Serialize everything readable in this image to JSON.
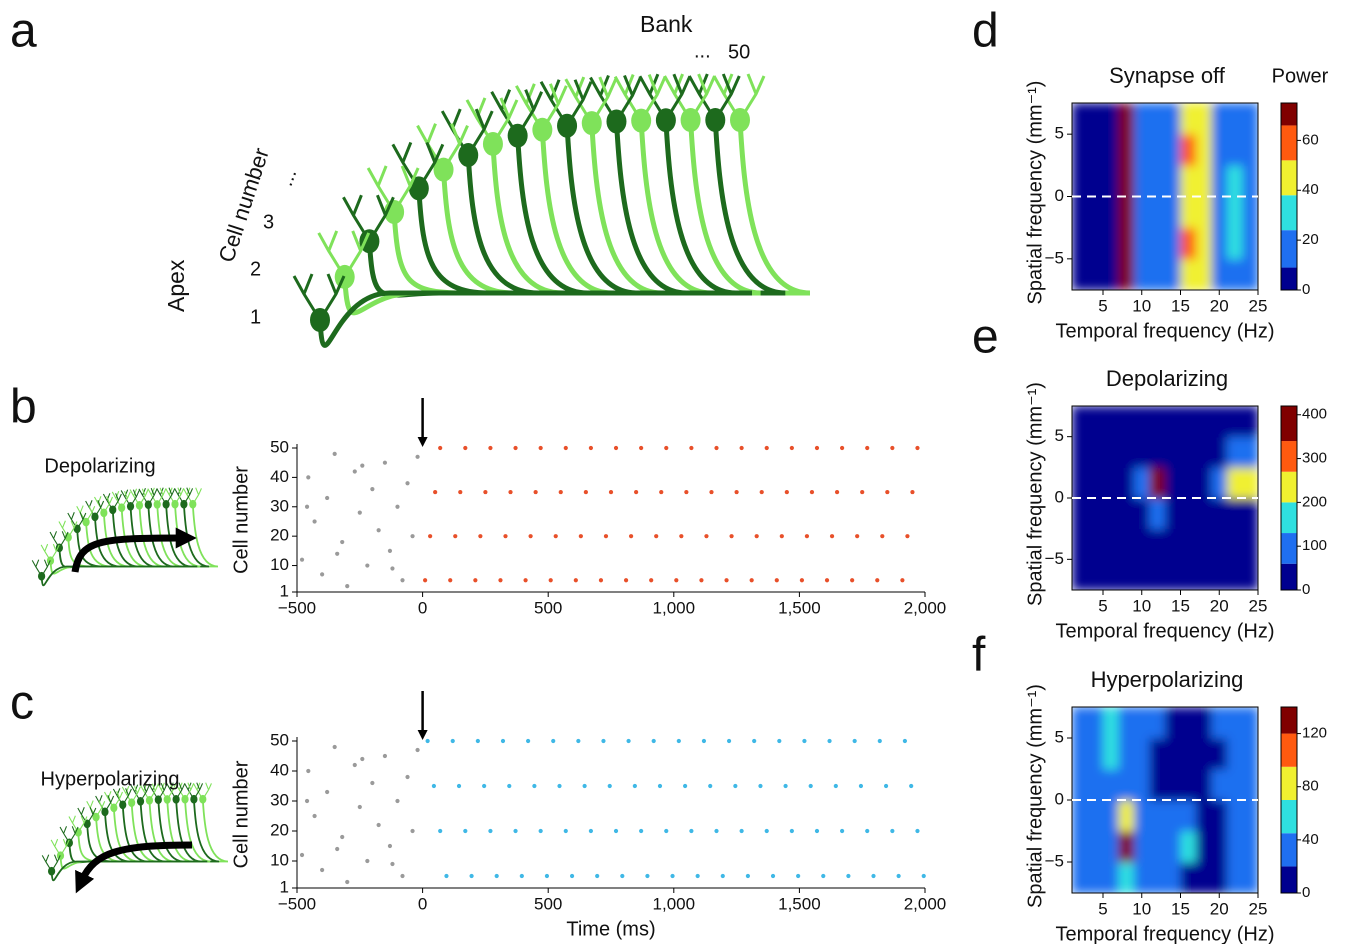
{
  "panel_labels": [
    "a",
    "b",
    "c",
    "d",
    "e",
    "f"
  ],
  "diagram": {
    "bank_label": "Bank",
    "bank_last": "50",
    "ellipsis": "...",
    "axis_label": "Cell number",
    "cell_labels": [
      "1",
      "2",
      "3"
    ],
    "apex_label": "Apex"
  },
  "chart_data": [
    {
      "type": "scatter",
      "annotation": "Depolarizing",
      "ylabel": "Cell number",
      "stimulus_onset": 0,
      "xlim": [
        -500,
        2000
      ],
      "ylim": [
        1,
        50
      ],
      "xticks": [
        {
          "value": -500,
          "label": "−500"
        },
        0,
        500,
        {
          "value": 1000,
          "label": "1,000"
        },
        {
          "value": 1500,
          "label": "1,500"
        },
        {
          "value": 2000,
          "label": "2,000"
        }
      ],
      "yticks": [
        1,
        10,
        20,
        30,
        40,
        50
      ],
      "series": [
        {
          "color": "#9a9a9a",
          "x": [
            -480,
            -455,
            -430,
            -400,
            -380,
            -350,
            -320,
            -300,
            -270,
            -250,
            -220,
            -200,
            -175,
            -150,
            -130,
            -100,
            -80,
            -60,
            -40,
            -20,
            -460,
            -340,
            -240,
            -120
          ],
          "values": [
            12,
            40,
            25,
            7,
            33,
            48,
            18,
            3,
            42,
            28,
            10,
            36,
            22,
            45,
            15,
            30,
            5,
            38,
            20,
            47,
            30,
            14,
            44,
            9
          ]
        },
        {
          "color": "#e8502a",
          "x": [
            10,
            30,
            50,
            70,
            110,
            130,
            150,
            170,
            210,
            230,
            250,
            270,
            310,
            330,
            350,
            370,
            410,
            430,
            450,
            470,
            510,
            530,
            550,
            570,
            610,
            630,
            650,
            670,
            710,
            730,
            750,
            770,
            810,
            830,
            850,
            870,
            910,
            930,
            950,
            970,
            1010,
            1030,
            1050,
            1070,
            1110,
            1130,
            1150,
            1170,
            1210,
            1230,
            1250,
            1270,
            1310,
            1330,
            1350,
            1370,
            1410,
            1430,
            1450,
            1470,
            1510,
            1530,
            1550,
            1570,
            1610,
            1630,
            1650,
            1670,
            1710,
            1730,
            1750,
            1770,
            1810,
            1830,
            1850,
            1870,
            1910,
            1930,
            1950,
            1970
          ],
          "values": [
            5,
            20,
            35,
            50,
            5,
            20,
            35,
            50,
            5,
            20,
            35,
            50,
            5,
            20,
            35,
            50,
            5,
            20,
            35,
            50,
            5,
            20,
            35,
            50,
            5,
            20,
            35,
            50,
            5,
            20,
            35,
            50,
            5,
            20,
            35,
            50,
            5,
            20,
            35,
            50,
            5,
            20,
            35,
            50,
            5,
            20,
            35,
            50,
            5,
            20,
            35,
            50,
            5,
            20,
            35,
            50,
            5,
            20,
            35,
            50,
            5,
            20,
            35,
            50,
            5,
            20,
            35,
            50,
            5,
            20,
            35,
            50,
            5,
            20,
            35,
            50,
            5,
            20,
            35,
            50
          ]
        }
      ]
    },
    {
      "type": "scatter",
      "annotation": "Hyperpolarizing",
      "ylabel": "Cell number",
      "xlabel": "Time (ms)",
      "stimulus_onset": 0,
      "xlim": [
        -500,
        2000
      ],
      "ylim": [
        1,
        50
      ],
      "xticks": [
        {
          "value": -500,
          "label": "−500"
        },
        0,
        500,
        {
          "value": 1000,
          "label": "1,000"
        },
        {
          "value": 1500,
          "label": "1,500"
        },
        {
          "value": 2000,
          "label": "2,000"
        }
      ],
      "yticks": [
        1,
        10,
        20,
        30,
        40,
        50
      ],
      "series": [
        {
          "color": "#9a9a9a",
          "x": [
            -480,
            -455,
            -430,
            -400,
            -380,
            -350,
            -320,
            -300,
            -270,
            -250,
            -220,
            -200,
            -175,
            -150,
            -130,
            -100,
            -80,
            -60,
            -40,
            -20,
            -460,
            -340,
            -240,
            -120
          ],
          "values": [
            12,
            40,
            25,
            7,
            33,
            48,
            18,
            3,
            42,
            28,
            10,
            36,
            22,
            45,
            15,
            30,
            5,
            38,
            20,
            47,
            30,
            14,
            44,
            9
          ]
        },
        {
          "color": "#3fb8e6",
          "x": [
            20,
            45,
            70,
            95,
            120,
            145,
            170,
            195,
            220,
            245,
            270,
            295,
            320,
            345,
            370,
            395,
            420,
            445,
            470,
            495,
            520,
            545,
            570,
            595,
            620,
            645,
            670,
            695,
            720,
            745,
            770,
            795,
            820,
            845,
            870,
            895,
            920,
            945,
            970,
            995,
            1020,
            1045,
            1070,
            1095,
            1120,
            1145,
            1170,
            1195,
            1220,
            1245,
            1270,
            1295,
            1320,
            1345,
            1370,
            1395,
            1420,
            1445,
            1470,
            1495,
            1520,
            1545,
            1570,
            1595,
            1620,
            1645,
            1670,
            1695,
            1720,
            1745,
            1770,
            1795,
            1820,
            1845,
            1870,
            1895,
            1920,
            1945,
            1970,
            1995
          ],
          "values": [
            50,
            35,
            20,
            5,
            50,
            35,
            20,
            5,
            50,
            35,
            20,
            5,
            50,
            35,
            20,
            5,
            50,
            35,
            20,
            5,
            50,
            35,
            20,
            5,
            50,
            35,
            20,
            5,
            50,
            35,
            20,
            5,
            50,
            35,
            20,
            5,
            50,
            35,
            20,
            5,
            50,
            35,
            20,
            5,
            50,
            35,
            20,
            5,
            50,
            35,
            20,
            5,
            50,
            35,
            20,
            5,
            50,
            35,
            20,
            5,
            50,
            35,
            20,
            5,
            50,
            35,
            20,
            5,
            50,
            35,
            20,
            5,
            50,
            35,
            20,
            5,
            50,
            35,
            20,
            5
          ]
        }
      ]
    },
    {
      "type": "heatmap",
      "title": "Synapse off",
      "zlabel": "Power",
      "xlabel": "Temporal frequency (Hz)",
      "ylabel": "Spatial frequency (mm⁻¹)",
      "zero_line": true,
      "xlim": [
        1,
        25
      ],
      "ylim": [
        -7.5,
        7.5
      ],
      "xticks": [
        5,
        10,
        15,
        20,
        25
      ],
      "yticks": [
        {
          "value": -5,
          "label": "−5"
        },
        0,
        5
      ],
      "xbins": [
        1,
        3,
        5,
        7,
        9,
        11,
        13,
        15,
        17,
        19,
        21,
        23,
        25
      ],
      "ybins": [
        -7.5,
        -5,
        -2.5,
        0,
        2.5,
        5,
        7.5
      ],
      "z": [
        [
          4,
          4,
          5,
          68,
          16,
          15,
          16,
          45,
          48,
          18,
          22,
          14
        ],
        [
          4,
          4,
          5,
          72,
          16,
          16,
          15,
          58,
          46,
          20,
          26,
          15
        ],
        [
          4,
          4,
          5,
          70,
          15,
          15,
          16,
          44,
          50,
          19,
          28,
          16
        ],
        [
          4,
          4,
          5,
          71,
          15,
          16,
          15,
          45,
          48,
          20,
          24,
          15
        ],
        [
          4,
          4,
          5,
          70,
          16,
          15,
          16,
          60,
          47,
          18,
          22,
          14
        ],
        [
          4,
          4,
          5,
          69,
          15,
          15,
          15,
          44,
          48,
          19,
          20,
          14
        ]
      ],
      "levels": [
        0,
        9,
        24,
        38,
        52,
        66,
        75
      ],
      "colors": [
        "#00008f",
        "#1f6ff0",
        "#2fe0e0",
        "#f0f030",
        "#ff5a10",
        "#800000"
      ],
      "cticks": [
        0,
        20,
        40,
        60
      ]
    },
    {
      "type": "heatmap",
      "title": "Depolarizing",
      "xlabel": "Temporal frequency (Hz)",
      "ylabel": "Spatial frequency (mm⁻¹)",
      "zero_line": true,
      "xlim": [
        1,
        25
      ],
      "ylim": [
        -7.5,
        7.5
      ],
      "xticks": [
        5,
        10,
        15,
        20,
        25
      ],
      "yticks": [
        {
          "value": -5,
          "label": "−5"
        },
        0,
        5
      ],
      "xbins": [
        1,
        3,
        5,
        7,
        9,
        11,
        13,
        15,
        17,
        19,
        21,
        23,
        25
      ],
      "ybins": [
        -7.5,
        -5,
        -2.5,
        0,
        2.5,
        5,
        7.5
      ],
      "z": [
        [
          10,
          10,
          10,
          10,
          10,
          10,
          10,
          10,
          10,
          10,
          10,
          10
        ],
        [
          10,
          10,
          10,
          10,
          10,
          10,
          10,
          10,
          10,
          10,
          10,
          10
        ],
        [
          10,
          10,
          10,
          10,
          10,
          90,
          10,
          10,
          10,
          10,
          10,
          10
        ],
        [
          10,
          10,
          10,
          10,
          90,
          400,
          10,
          10,
          10,
          100,
          250,
          260
        ],
        [
          10,
          10,
          10,
          10,
          10,
          10,
          10,
          10,
          10,
          10,
          90,
          120
        ],
        [
          10,
          10,
          10,
          10,
          10,
          10,
          10,
          10,
          10,
          10,
          10,
          10
        ]
      ],
      "levels": [
        0,
        60,
        130,
        200,
        270,
        340,
        420
      ],
      "colors": [
        "#00008f",
        "#1f6ff0",
        "#2fe0e0",
        "#f0f030",
        "#ff5a10",
        "#800000"
      ],
      "cticks": [
        0,
        100,
        200,
        300,
        400
      ]
    },
    {
      "type": "heatmap",
      "title": "Hyperpolarizing",
      "xlabel": "Temporal frequency (Hz)",
      "ylabel": "Spatial frequency (mm⁻¹)",
      "zero_line": true,
      "xlim": [
        1,
        25
      ],
      "ylim": [
        -7.5,
        7.5
      ],
      "xticks": [
        5,
        10,
        15,
        20,
        25
      ],
      "yticks": [
        {
          "value": -5,
          "label": "−5"
        },
        0,
        5
      ],
      "xbins": [
        1,
        3,
        5,
        7,
        9,
        11,
        13,
        15,
        17,
        19,
        21,
        23,
        25
      ],
      "ybins": [
        -7.5,
        -5,
        -2.5,
        0,
        2.5,
        5,
        7.5
      ],
      "z": [
        [
          30,
          30,
          30,
          50,
          20,
          30,
          30,
          15,
          10,
          10,
          30,
          30
        ],
        [
          30,
          30,
          40,
          130,
          20,
          20,
          30,
          55,
          10,
          15,
          30,
          30
        ],
        [
          30,
          30,
          30,
          70,
          30,
          25,
          30,
          30,
          10,
          10,
          30,
          30
        ],
        [
          30,
          30,
          30,
          30,
          30,
          10,
          10,
          10,
          10,
          30,
          30,
          30
        ],
        [
          30,
          30,
          45,
          30,
          30,
          10,
          10,
          10,
          10,
          10,
          30,
          30
        ],
        [
          30,
          30,
          45,
          30,
          30,
          30,
          10,
          10,
          10,
          30,
          30,
          30
        ]
      ],
      "levels": [
        0,
        20,
        45,
        70,
        95,
        120,
        140
      ],
      "colors": [
        "#00008f",
        "#1f6ff0",
        "#2fe0e0",
        "#f0f030",
        "#ff5a10",
        "#800000"
      ],
      "cticks": [
        0,
        40,
        80,
        120
      ]
    }
  ]
}
